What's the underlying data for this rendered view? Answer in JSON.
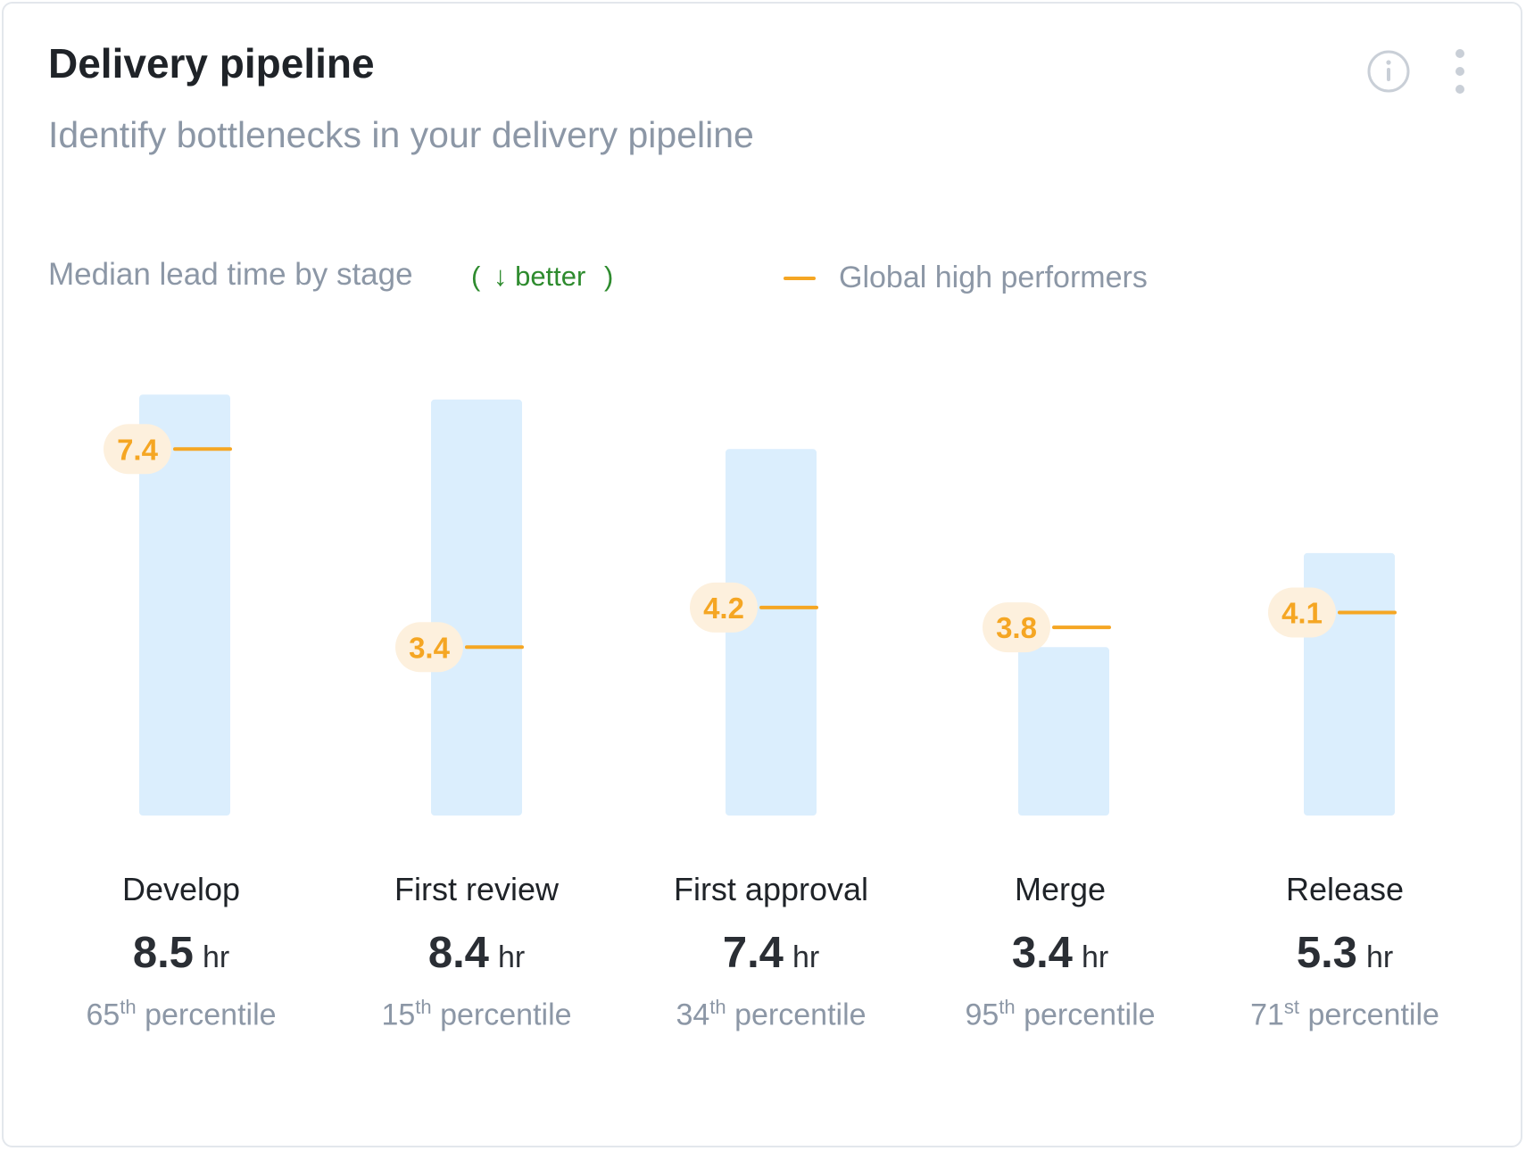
{
  "card": {
    "title": "Delivery pipeline",
    "subtitle": "Identify bottlenecks in your delivery pipeline"
  },
  "icons": {
    "info": "info-circle-icon",
    "more": "more-vertical-icon"
  },
  "chart_header": {
    "label": "Median lead time by stage",
    "better_open": "(",
    "better_arrow": "↓",
    "better_text": "better",
    "better_close": ")",
    "legend_label": "Global high performers"
  },
  "colors": {
    "bar": "#dbeefd",
    "benchmark": "#f5a623",
    "benchmark_badge": "#fdf0dd",
    "better": "#2e8b2e",
    "muted_text": "#8c97a6"
  },
  "chart_data": {
    "type": "bar",
    "categories": [
      "Develop",
      "First review",
      "First approval",
      "Merge",
      "Release"
    ],
    "series": [
      {
        "name": "",
        "values": [
          8.5,
          8.4,
          7.4,
          3.4,
          5.3
        ]
      },
      {
        "name": "Global high performers",
        "values": [
          7.4,
          3.4,
          4.2,
          3.8,
          4.1
        ]
      }
    ],
    "unit": "hr",
    "title": "Median lead time by stage",
    "xlabel": "",
    "ylabel": "",
    "grid": false,
    "legend": "top"
  },
  "stages": [
    {
      "name": "Develop",
      "value": "8.5",
      "unit": "hr",
      "pct_num": "65",
      "pct_suffix": "th",
      "pct_label": "percentile",
      "benchmark": "7.4"
    },
    {
      "name": "First review",
      "value": "8.4",
      "unit": "hr",
      "pct_num": "15",
      "pct_suffix": "th",
      "pct_label": "percentile",
      "benchmark": "3.4"
    },
    {
      "name": "First approval",
      "value": "7.4",
      "unit": "hr",
      "pct_num": "34",
      "pct_suffix": "th",
      "pct_label": "percentile",
      "benchmark": "4.2"
    },
    {
      "name": "Merge",
      "value": "3.4",
      "unit": "hr",
      "pct_num": "95",
      "pct_suffix": "th",
      "pct_label": "percentile",
      "benchmark": "3.8"
    },
    {
      "name": "Release",
      "value": "5.3",
      "unit": "hr",
      "pct_num": "71",
      "pct_suffix": "st",
      "pct_label": "percentile",
      "benchmark": "4.1"
    }
  ]
}
